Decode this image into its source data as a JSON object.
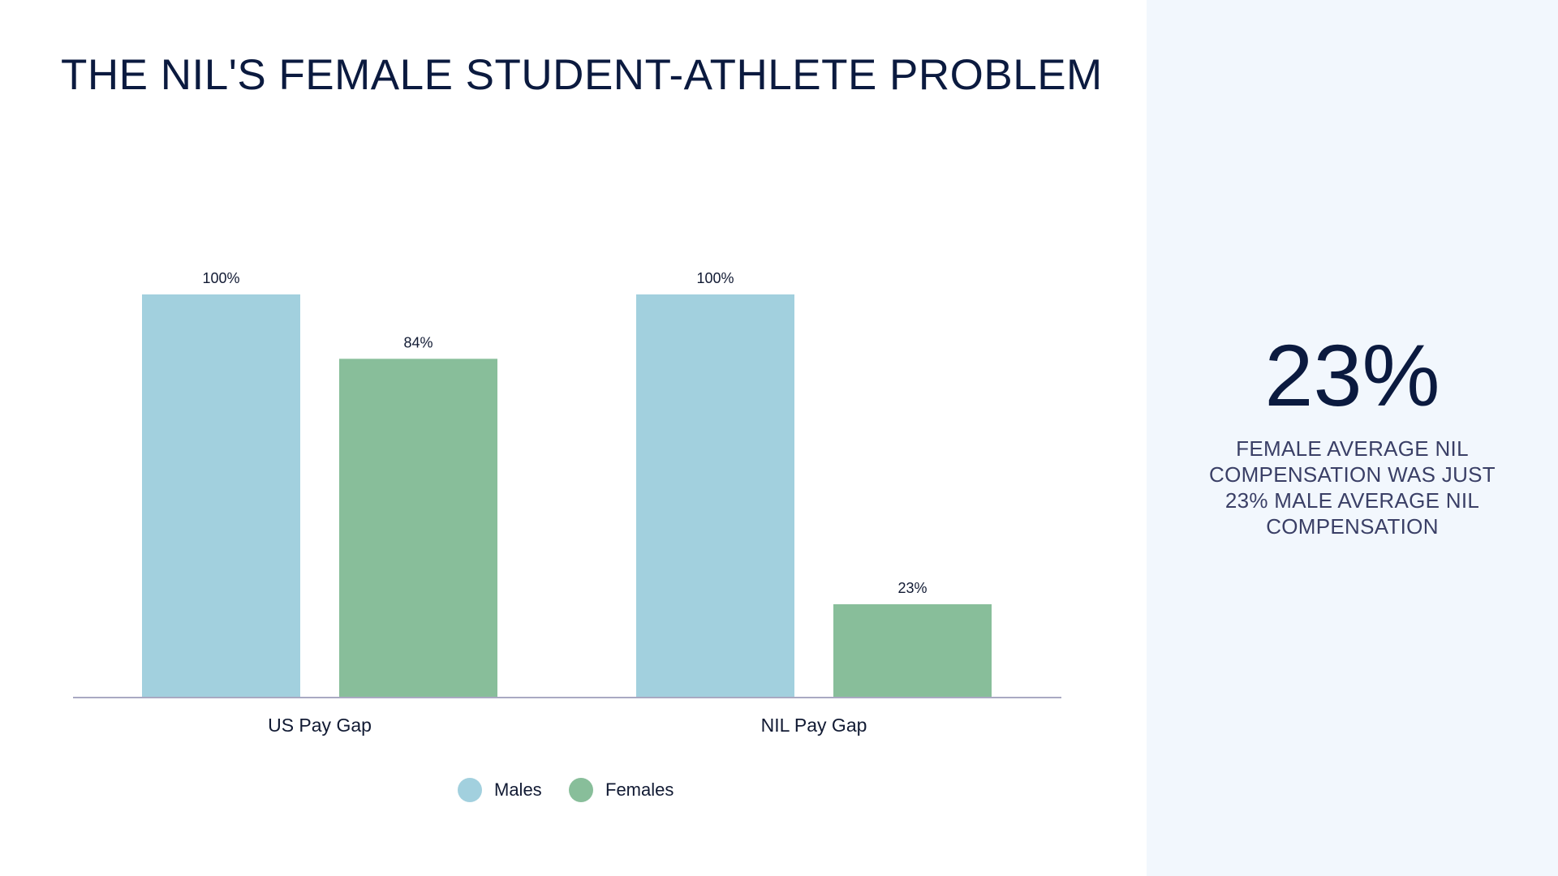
{
  "title": "THE NIL'S FEMALE STUDENT-ATHLETE PROBLEM",
  "stat": {
    "value": "23%",
    "caption": "FEMALE AVERAGE NIL COMPENSATION WAS JUST 23% MALE AVERAGE NIL COMPENSATION"
  },
  "colors": {
    "males": "#a2d0de",
    "females": "#88be9a",
    "title": "#0b1a3f",
    "axis": "#a9a9c2",
    "panel": "#f2f7fd"
  },
  "chart_data": {
    "type": "bar",
    "categories": [
      "US Pay Gap",
      "NIL Pay Gap"
    ],
    "series": [
      {
        "name": "Males",
        "values": [
          100,
          100
        ],
        "labels": [
          "100%",
          "100%"
        ]
      },
      {
        "name": "Females",
        "values": [
          84,
          23
        ],
        "labels": [
          "84%",
          "23%"
        ]
      }
    ],
    "ylim": [
      0,
      100
    ],
    "grid": false,
    "legend_position": "bottom",
    "xlabel": "",
    "ylabel": ""
  }
}
